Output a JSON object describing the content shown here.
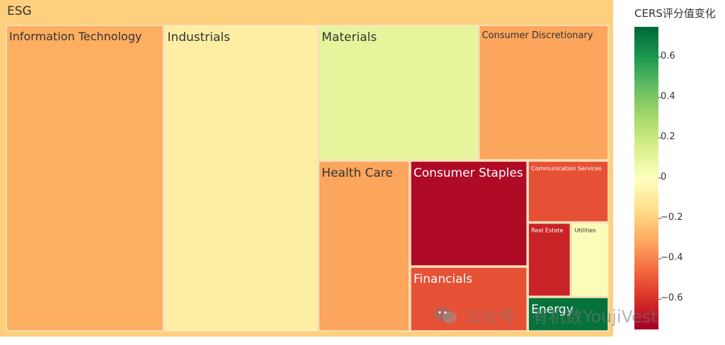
{
  "chart_data": {
    "type": "treemap",
    "root": "ESG",
    "colorbar": {
      "title": "CERS评分值变化",
      "range": [
        -0.75,
        0.75
      ],
      "ticks": [
        0.6,
        0.4,
        0.2,
        0,
        -0.2,
        -0.4,
        -0.6
      ],
      "tick_labels": [
        "0.6",
        "0.4",
        "0.2",
        "0",
        "−0.2",
        "−0.4",
        "−0.6"
      ],
      "colorscale": [
        "#a50026",
        "#d73027",
        "#f46d43",
        "#fdae61",
        "#fee08b",
        "#ffffbf",
        "#d9ef8b",
        "#a6d96a",
        "#66bd63",
        "#1a9850",
        "#006837"
      ]
    },
    "sectors": [
      {
        "label": "Industrials",
        "value": 23.5,
        "change": -0.08
      },
      {
        "label": "Information Technology",
        "value": 24.1,
        "change": -0.3
      },
      {
        "label": "Materials",
        "value": 10.8,
        "change": 0.1
      },
      {
        "label": "Consumer Discretionary",
        "value": 8.8,
        "change": -0.32
      },
      {
        "label": "Health Care",
        "value": 7.8,
        "change": -0.32
      },
      {
        "label": "Consumer Staples",
        "value": 6.2,
        "change": -0.72
      },
      {
        "label": "Financials",
        "value": 3.8,
        "change": -0.52
      },
      {
        "label": "Communication Services",
        "value": 2.5,
        "change": -0.52
      },
      {
        "label": "Real Estate",
        "value": 1.6,
        "change": -0.64
      },
      {
        "label": "Utilities",
        "value": 1.4,
        "change": 0.02
      },
      {
        "label": "Energy",
        "value": 1.4,
        "change": 0.72
      }
    ]
  },
  "watermark": "公众号 · 有机数YoujiVest"
}
